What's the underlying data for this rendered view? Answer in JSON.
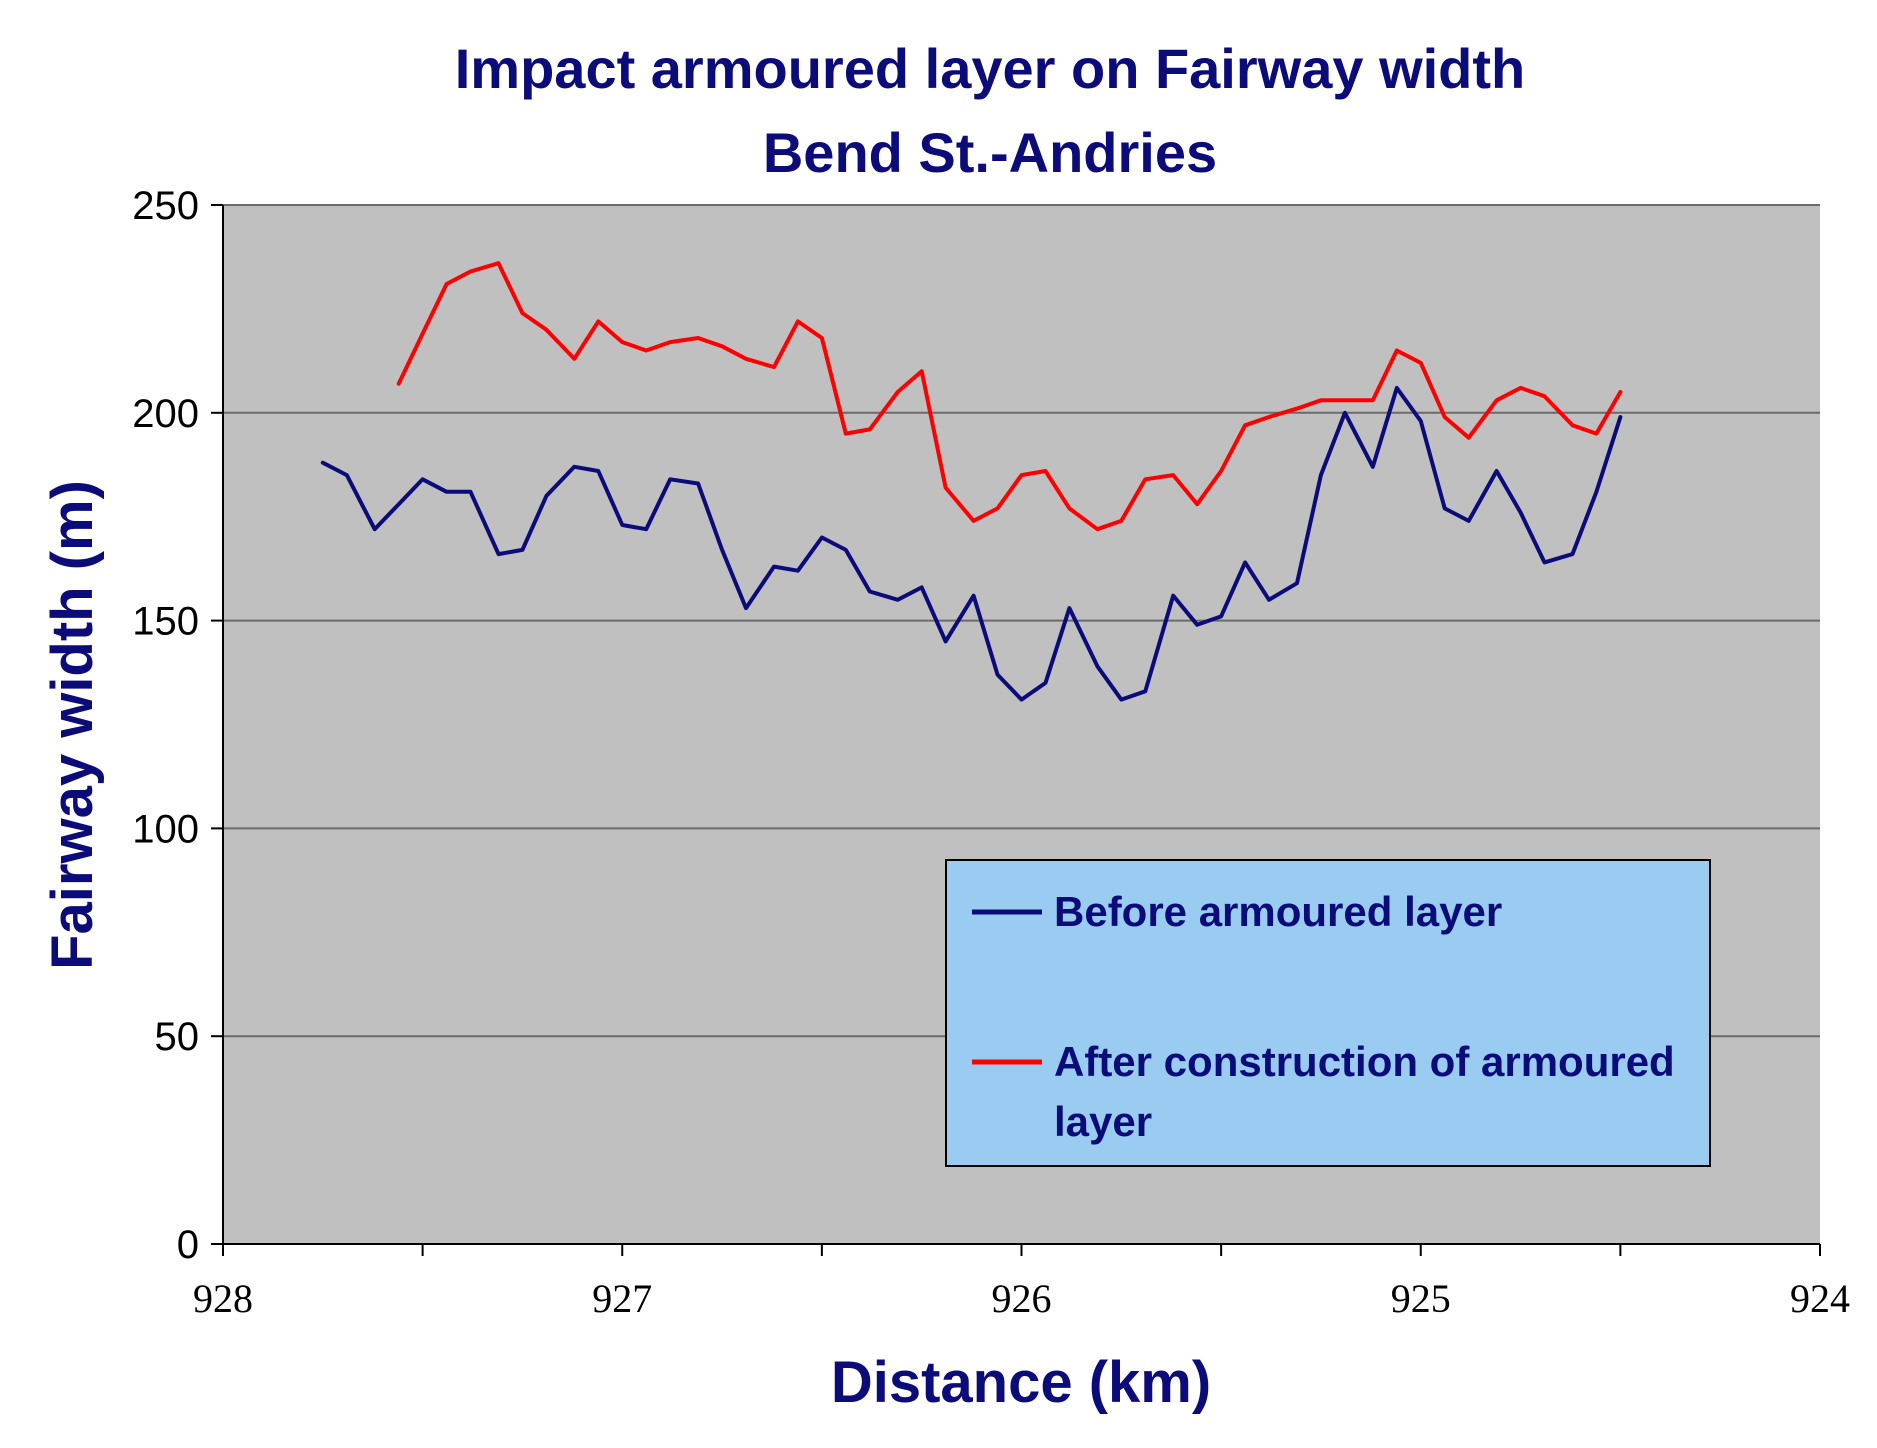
{
  "chart_data": {
    "type": "line",
    "title": [
      "Impact armoured layer on Fairway width",
      "Bend St.-Andries"
    ],
    "xlabel": "Distance (km)",
    "ylabel": "Fairway width (m)",
    "xlim": [
      928,
      924
    ],
    "ylim": [
      0,
      250
    ],
    "x_ticks": [
      928,
      927,
      926,
      925,
      924
    ],
    "x_tick_labels": [
      "928",
      "927",
      "926",
      "925",
      "924"
    ],
    "y_ticks": [
      0,
      50,
      100,
      150,
      200,
      250
    ],
    "y_tick_labels": [
      "0",
      "50",
      "100",
      "150",
      "200",
      "250"
    ],
    "grid": "horizontal",
    "plot_background": "#c0c0c0",
    "legend": {
      "placement": "bottom-right",
      "background": "#99ccf0",
      "entries": [
        "Before armoured layer",
        "After construction of armoured",
        "layer"
      ]
    },
    "series": [
      {
        "name": "Before armoured layer",
        "color": "#0b0b7a",
        "x": [
          927.75,
          927.69,
          927.62,
          927.56,
          927.5,
          927.44,
          927.38,
          927.31,
          927.25,
          927.19,
          927.12,
          927.06,
          927.0,
          926.94,
          926.88,
          926.81,
          926.75,
          926.69,
          926.62,
          926.56,
          926.5,
          926.44,
          926.38,
          926.31,
          926.25,
          926.19,
          926.12,
          926.06,
          926.0,
          925.94,
          925.88,
          925.81,
          925.75,
          925.69,
          925.62,
          925.56,
          925.5,
          925.44,
          925.38,
          925.31,
          925.25,
          925.19,
          925.12,
          925.06,
          925.0,
          924.94,
          924.88,
          924.81,
          924.75,
          924.69,
          924.62,
          924.56,
          924.5
        ],
        "values": [
          188,
          185,
          172,
          178,
          184,
          181,
          181,
          166,
          167,
          180,
          187,
          186,
          173,
          172,
          184,
          183,
          167,
          153,
          163,
          162,
          170,
          167,
          157,
          155,
          158,
          145,
          156,
          137,
          131,
          135,
          153,
          139,
          131,
          133,
          156,
          149,
          151,
          164,
          155,
          159,
          185,
          200,
          187,
          206,
          198,
          177,
          174,
          186,
          176,
          164,
          166,
          181,
          199
        ]
      },
      {
        "name": "After construction of armoured layer",
        "color": "#ff0000",
        "x": [
          927.56,
          927.5,
          927.44,
          927.38,
          927.31,
          927.25,
          927.19,
          927.12,
          927.06,
          927.0,
          926.94,
          926.88,
          926.81,
          926.75,
          926.69,
          926.62,
          926.56,
          926.5,
          926.44,
          926.38,
          926.31,
          926.25,
          926.19,
          926.12,
          926.06,
          926.0,
          925.94,
          925.88,
          925.81,
          925.75,
          925.69,
          925.62,
          925.56,
          925.5,
          925.44,
          925.38,
          925.31,
          925.25,
          925.19,
          925.12,
          925.06,
          925.0,
          924.94,
          924.88,
          924.81,
          924.75,
          924.69,
          924.62,
          924.56,
          924.5
        ],
        "values": [
          207,
          219,
          231,
          234,
          236,
          224,
          220,
          213,
          222,
          217,
          215,
          217,
          218,
          216,
          213,
          211,
          222,
          218,
          195,
          196,
          205,
          210,
          182,
          174,
          177,
          185,
          186,
          177,
          172,
          174,
          184,
          185,
          178,
          186,
          197,
          199,
          201,
          203,
          203,
          203,
          215,
          212,
          199,
          194,
          203,
          206,
          204,
          197,
          195,
          205
        ]
      }
    ]
  }
}
